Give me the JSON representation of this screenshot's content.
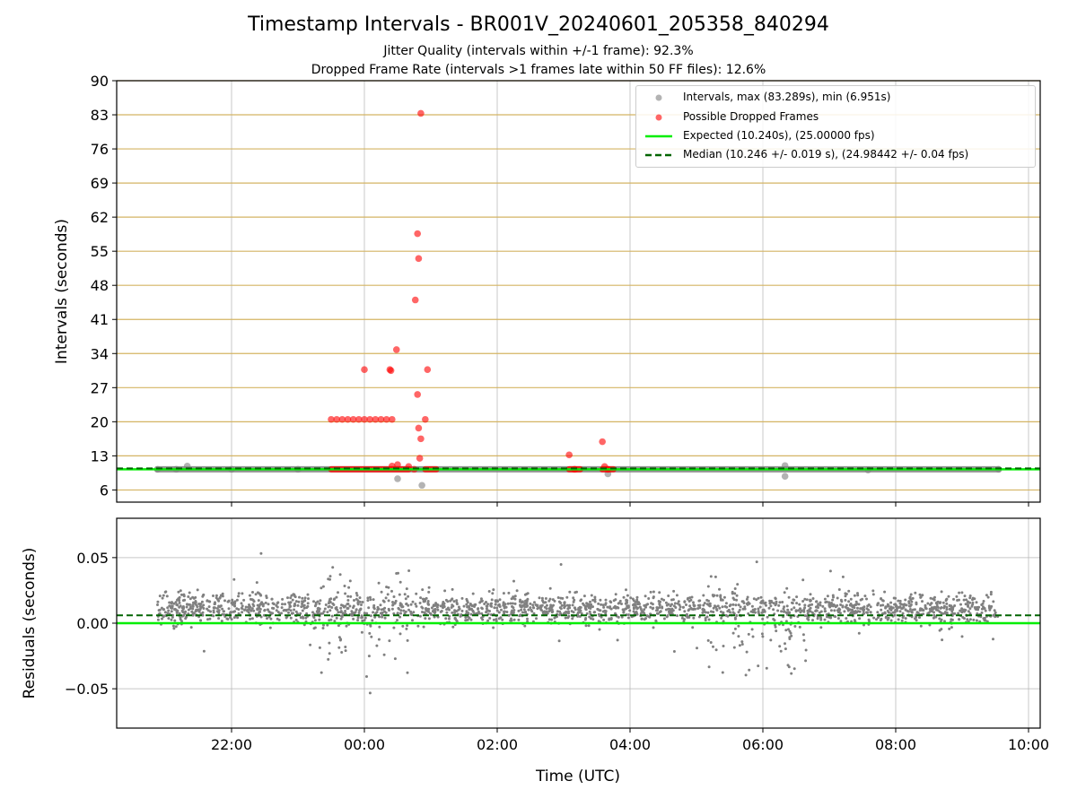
{
  "title": "Timestamp Intervals - BR001V_20240601_205358_840294",
  "subtitle1": "Jitter Quality (intervals within +/-1 frame): 92.3%",
  "subtitle2": "Dropped Frame Rate (intervals >1 frames late within 50 FF files): 12.6%",
  "colors": {
    "intervals": "#808080",
    "dropped": "#ff0000",
    "expected": "#00ee00",
    "median": "#006400",
    "hband": "#d4b463",
    "grid": "#b0b0b0"
  },
  "legend": {
    "intervals": "Intervals, max (83.289s), min (6.951s)",
    "dropped": "Possible Dropped Frames",
    "expected": "Expected (10.240s), (25.00000 fps)",
    "median": "Median (10.246 +/- 0.019 s), (24.98442 +/- 0.04 fps)"
  },
  "chart_data": [
    {
      "type": "scatter",
      "panel": "top",
      "ylabel": "Intervals (seconds)",
      "ylim": [
        3.5,
        90
      ],
      "yticks": [
        "6",
        "13",
        "20",
        "27",
        "34",
        "41",
        "48",
        "55",
        "62",
        "69",
        "76",
        "83",
        "90"
      ],
      "x_range_hours": [
        "20:53",
        "09:33"
      ],
      "expected": 10.24,
      "median": 10.246,
      "series": [
        {
          "name": "Intervals, max (83.289s), min (6.951s)",
          "points": [
            [
              "20:53",
              10.24
            ],
            [
              "21:10",
              10.24
            ],
            [
              "21:20",
              10.9
            ],
            [
              "22:00",
              10.24
            ],
            [
              "23:00",
              10.24
            ],
            [
              "00:30",
              8.3
            ],
            [
              "00:52",
              6.95
            ],
            [
              "03:40",
              9.3
            ],
            [
              "06:20",
              11.0
            ],
            [
              "06:20",
              8.8
            ],
            [
              "07:35",
              10.1
            ],
            [
              "09:33",
              10.24
            ]
          ]
        },
        {
          "name": "Possible Dropped Frames",
          "points": [
            [
              "23:30",
              20.48
            ],
            [
              "23:35",
              20.48
            ],
            [
              "23:40",
              20.48
            ],
            [
              "23:45",
              20.48
            ],
            [
              "23:50",
              20.48
            ],
            [
              "23:55",
              20.48
            ],
            [
              "00:00",
              20.48
            ],
            [
              "00:05",
              20.48
            ],
            [
              "00:10",
              20.48
            ],
            [
              "00:15",
              20.48
            ],
            [
              "00:20",
              20.48
            ],
            [
              "00:25",
              20.48
            ],
            [
              "00:55",
              20.48
            ],
            [
              "00:00",
              30.7
            ],
            [
              "00:23",
              30.7
            ],
            [
              "00:24",
              30.5
            ],
            [
              "00:29",
              34.8
            ],
            [
              "00:46",
              45.0
            ],
            [
              "00:48",
              58.6
            ],
            [
              "00:49",
              53.5
            ],
            [
              "00:51",
              83.3
            ],
            [
              "00:48",
              25.6
            ],
            [
              "00:49",
              18.7
            ],
            [
              "00:51",
              16.5
            ],
            [
              "00:50",
              12.5
            ],
            [
              "00:57",
              30.7
            ],
            [
              "00:25",
              10.9
            ],
            [
              "00:30",
              11.2
            ],
            [
              "00:40",
              10.8
            ],
            [
              "03:05",
              13.2
            ],
            [
              "03:35",
              15.9
            ],
            [
              "03:37",
              10.8
            ],
            [
              "03:10",
              10.24
            ],
            [
              "03:40",
              10.24
            ],
            [
              "00:45",
              10.24
            ]
          ],
          "band_ranges": [
            [
              "23:30",
              "00:40"
            ],
            [
              "00:55",
              "01:05"
            ],
            [
              "03:05",
              "03:15"
            ],
            [
              "03:35",
              "03:45"
            ]
          ],
          "band_value": 10.24
        }
      ]
    },
    {
      "type": "scatter",
      "panel": "bottom",
      "xlabel": "Time (UTC)",
      "ylabel": "Residuals (seconds)",
      "ylim": [
        -0.08,
        0.08
      ],
      "yticks": [
        "0.05",
        "0.00",
        "−0.05"
      ],
      "xticks": [
        "22:00",
        "00:00",
        "02:00",
        "04:00",
        "06:00",
        "08:00",
        "10:00"
      ],
      "expected_line": 0.0,
      "median_line": 0.006,
      "series": [
        {
          "name": "Residuals",
          "x_range": [
            "20:53",
            "09:33"
          ],
          "typical_range": [
            -0.02,
            0.035
          ],
          "high_scatter_windows": [
            [
              "23:20",
              "00:50"
            ],
            [
              "05:10",
              "06:40"
            ]
          ]
        }
      ]
    }
  ]
}
